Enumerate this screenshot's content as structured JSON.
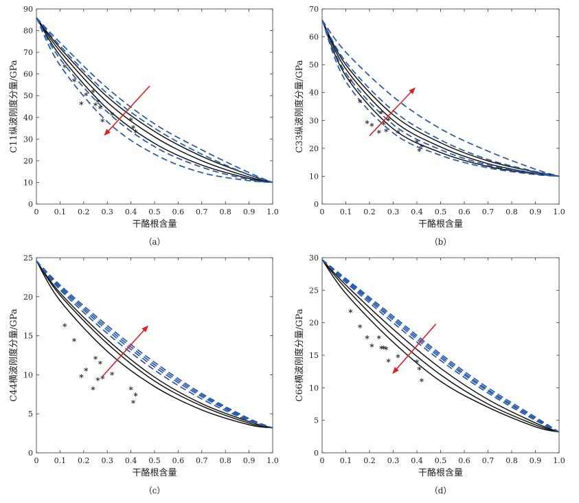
{
  "figure": {
    "xlabel": "干酪根含量",
    "colors": {
      "model": "#111111",
      "bound": "#2a5caa",
      "arrow": "#e02020",
      "points": "#111111"
    }
  },
  "chart_data": [
    {
      "type": "line",
      "panel_label": "（a）",
      "ylabel": "C11纵波刚度分量/GPa",
      "xlabel": "干酪根含量",
      "xlim": [
        0,
        1.0
      ],
      "ylim": [
        0,
        90
      ],
      "xticks": [
        "0",
        "0.1",
        "0.2",
        "0.3",
        "0.4",
        "0.5",
        "0.6",
        "0.7",
        "0.8",
        "0.9",
        "1.0"
      ],
      "yticks": [
        "0",
        "10",
        "20",
        "30",
        "40",
        "50",
        "60",
        "70",
        "80",
        "90"
      ],
      "start_value": 86,
      "end_value": 10,
      "series": [
        {
          "name": "model-1",
          "style": "solid",
          "values_at": {
            "0.1": 72.0,
            "0.3": 49.5,
            "0.5": 33.5,
            "0.7": 22.0,
            "0.9": 13.5
          }
        },
        {
          "name": "model-2",
          "style": "solid",
          "values_at": {
            "0.1": 70.5,
            "0.3": 47.0,
            "0.5": 31.0,
            "0.7": 20.0,
            "0.9": 12.5
          }
        },
        {
          "name": "model-3",
          "style": "solid",
          "values_at": {
            "0.1": 68.5,
            "0.3": 44.0,
            "0.5": 28.0,
            "0.7": 18.0,
            "0.9": 11.8
          }
        },
        {
          "name": "bound-1",
          "style": "dashed",
          "values_at": {
            "0.1": 74.5,
            "0.3": 53.5,
            "0.5": 37.0,
            "0.7": 25.0,
            "0.9": 14.5
          }
        },
        {
          "name": "bound-2",
          "style": "dashed",
          "values_at": {
            "0.1": 73.0,
            "0.3": 51.0,
            "0.5": 35.0,
            "0.7": 23.0,
            "0.9": 13.5
          }
        },
        {
          "name": "bound-3",
          "style": "dashed",
          "values_at": {
            "0.1": 67.0,
            "0.3": 42.5,
            "0.5": 26.5,
            "0.7": 17.0,
            "0.9": 11.3
          }
        },
        {
          "name": "bound-4",
          "style": "dashed",
          "values_at": {
            "0.1": 64.0,
            "0.3": 38.0,
            "0.5": 23.0,
            "0.7": 14.5,
            "0.9": 10.8
          }
        }
      ],
      "points": {
        "x": [
          0.12,
          0.16,
          0.19,
          0.21,
          0.24,
          0.25,
          0.26,
          0.27,
          0.28,
          0.32,
          0.4,
          0.41,
          0.42
        ],
        "y": [
          63,
          56.5,
          46,
          50,
          51.5,
          45.5,
          47,
          44,
          38,
          41,
          38.5,
          35,
          33
        ]
      },
      "arrow": {
        "from": [
          0.48,
          54.5
        ],
        "to": [
          0.29,
          32.0
        ]
      }
    },
    {
      "type": "line",
      "panel_label": "（b）",
      "ylabel": "C33纵波刚度分量/GPa",
      "xlabel": "干酪根含量",
      "xlim": [
        0,
        1.0
      ],
      "ylim": [
        0,
        70
      ],
      "xticks": [
        "0",
        "0.1",
        "0.2",
        "0.3",
        "0.4",
        "0.5",
        "0.6",
        "0.7",
        "0.8",
        "0.9",
        "1.0"
      ],
      "yticks": [
        "0",
        "10",
        "20",
        "30",
        "40",
        "50",
        "60",
        "70"
      ],
      "start_value": 66,
      "end_value": 10,
      "series": [
        {
          "name": "model-1",
          "style": "solid",
          "values_at": {
            "0.1": 50.0,
            "0.3": 32.0,
            "0.5": 22.0,
            "0.7": 15.5,
            "0.9": 11.5
          }
        },
        {
          "name": "model-2",
          "style": "solid",
          "values_at": {
            "0.1": 48.5,
            "0.3": 30.0,
            "0.5": 20.5,
            "0.7": 14.5,
            "0.9": 11.0
          }
        },
        {
          "name": "model-3",
          "style": "solid",
          "values_at": {
            "0.1": 46.0,
            "0.3": 27.0,
            "0.5": 18.5,
            "0.7": 13.5,
            "0.9": 10.8
          }
        },
        {
          "name": "bound-1",
          "style": "dashed",
          "values_at": {
            "0.1": 54.5,
            "0.3": 38.5,
            "0.5": 27.0,
            "0.7": 19.0,
            "0.9": 12.5
          }
        },
        {
          "name": "bound-2",
          "style": "dashed",
          "values_at": {
            "0.1": 51.0,
            "0.3": 33.5,
            "0.5": 23.0,
            "0.7": 16.0,
            "0.9": 11.7
          }
        },
        {
          "name": "bound-3",
          "style": "dashed",
          "values_at": {
            "0.1": 47.0,
            "0.3": 28.5,
            "0.5": 19.5,
            "0.7": 14.0,
            "0.9": 11.0
          }
        },
        {
          "name": "bound-4",
          "style": "dashed",
          "values_at": {
            "0.1": 44.0,
            "0.3": 25.5,
            "0.5": 17.5,
            "0.7": 13.0,
            "0.9": 10.6
          }
        }
      ],
      "points": {
        "x": [
          0.12,
          0.16,
          0.19,
          0.21,
          0.24,
          0.25,
          0.26,
          0.27,
          0.28,
          0.32,
          0.4,
          0.41,
          0.42
        ],
        "y": [
          44,
          36.5,
          29,
          28,
          25.5,
          32.5,
          28.5,
          26,
          30,
          25.5,
          22,
          19,
          20.5
        ]
      },
      "arrow": {
        "from": [
          0.2,
          24.5
        ],
        "to": [
          0.39,
          41.5
        ]
      }
    },
    {
      "type": "line",
      "panel_label": "（c）",
      "ylabel": "C44横波刚度分量/GPa",
      "xlabel": "干酪根含量",
      "xlim": [
        0,
        1.0
      ],
      "ylim": [
        0,
        25
      ],
      "xticks": [
        "0",
        "0.1",
        "0.2",
        "0.3",
        "0.4",
        "0.5",
        "0.6",
        "0.7",
        "0.8",
        "0.9",
        "1.0"
      ],
      "yticks": [
        "0",
        "5",
        "10",
        "15",
        "20",
        "25"
      ],
      "start_value": 24.6,
      "end_value": 3.2,
      "series": [
        {
          "name": "model-1",
          "style": "solid",
          "values_at": {
            "0.1": 20.5,
            "0.3": 14.5,
            "0.5": 9.7,
            "0.7": 6.3,
            "0.9": 4.0
          }
        },
        {
          "name": "model-2",
          "style": "solid",
          "values_at": {
            "0.1": 20.2,
            "0.3": 14.0,
            "0.5": 9.2,
            "0.7": 6.0,
            "0.9": 3.8
          }
        },
        {
          "name": "model-3",
          "style": "solid",
          "values_at": {
            "0.1": 19.5,
            "0.3": 13.0,
            "0.5": 8.5,
            "0.7": 5.5,
            "0.9": 3.6
          }
        },
        {
          "name": "bound-1",
          "style": "dashed",
          "values_at": {
            "0.1": 21.5,
            "0.3": 16.3,
            "0.5": 11.6,
            "0.7": 7.6,
            "0.9": 4.4
          }
        },
        {
          "name": "bound-2",
          "style": "dashed",
          "values_at": {
            "0.1": 21.3,
            "0.3": 16.0,
            "0.5": 11.3,
            "0.7": 7.4,
            "0.9": 4.3
          }
        },
        {
          "name": "bound-3",
          "style": "dashed",
          "values_at": {
            "0.1": 21.1,
            "0.3": 15.7,
            "0.5": 11.0,
            "0.7": 7.2,
            "0.9": 4.2
          }
        },
        {
          "name": "bound-4",
          "style": "dashed",
          "values_at": {
            "0.1": 20.9,
            "0.3": 15.3,
            "0.5": 10.6,
            "0.7": 6.9,
            "0.9": 4.1
          }
        }
      ],
      "points": {
        "x": [
          0.12,
          0.16,
          0.19,
          0.21,
          0.24,
          0.25,
          0.26,
          0.27,
          0.28,
          0.32,
          0.4,
          0.41,
          0.42
        ],
        "y": [
          16.2,
          14.3,
          9.7,
          10.5,
          8.1,
          12.0,
          9.3,
          11.4,
          9.5,
          10.0,
          8.1,
          6.4,
          7.3
        ]
      },
      "arrow": {
        "from": [
          0.28,
          9.8
        ],
        "to": [
          0.47,
          16.2
        ]
      }
    },
    {
      "type": "line",
      "panel_label": "（d）",
      "ylabel": "C66横波刚度分量/GPa",
      "xlabel": "干酪根含量",
      "xlim": [
        0,
        1.0
      ],
      "ylim": [
        0,
        30
      ],
      "xticks": [
        "0",
        "0.1",
        "0.2",
        "0.3",
        "0.4",
        "0.5",
        "0.6",
        "0.7",
        "0.8",
        "0.9",
        "1.0"
      ],
      "yticks": [
        "0",
        "5",
        "10",
        "15",
        "20",
        "25",
        "30"
      ],
      "start_value": 29.7,
      "end_value": 3.2,
      "series": [
        {
          "name": "model-1",
          "style": "solid",
          "values_at": {
            "0.1": 25.8,
            "0.3": 19.0,
            "0.5": 13.0,
            "0.7": 8.2,
            "0.9": 4.6
          }
        },
        {
          "name": "model-2",
          "style": "solid",
          "values_at": {
            "0.1": 25.3,
            "0.3": 18.0,
            "0.5": 12.0,
            "0.7": 7.5,
            "0.9": 4.3
          }
        },
        {
          "name": "model-3",
          "style": "solid",
          "values_at": {
            "0.1": 24.5,
            "0.3": 17.0,
            "0.5": 11.0,
            "0.7": 7.0,
            "0.9": 4.0
          }
        },
        {
          "name": "bound-1",
          "style": "dashed",
          "values_at": {
            "0.1": 26.8,
            "0.3": 21.0,
            "0.5": 15.2,
            "0.7": 10.0,
            "0.9": 5.5
          }
        },
        {
          "name": "bound-2",
          "style": "dashed",
          "values_at": {
            "0.1": 26.6,
            "0.3": 20.7,
            "0.5": 14.9,
            "0.7": 9.7,
            "0.9": 5.3
          }
        },
        {
          "name": "bound-3",
          "style": "dashed",
          "values_at": {
            "0.1": 26.4,
            "0.3": 20.4,
            "0.5": 14.6,
            "0.7": 9.5,
            "0.9": 5.2
          }
        },
        {
          "name": "bound-4",
          "style": "dashed",
          "values_at": {
            "0.1": 26.2,
            "0.3": 20.0,
            "0.5": 14.2,
            "0.7": 9.2,
            "0.9": 5.0
          }
        }
      ],
      "points": {
        "x": [
          0.12,
          0.16,
          0.19,
          0.21,
          0.24,
          0.25,
          0.26,
          0.27,
          0.28,
          0.32,
          0.4,
          0.41,
          0.42
        ],
        "y": [
          21.6,
          19.3,
          17.6,
          16.3,
          17.6,
          16.0,
          16.0,
          15.9,
          14.0,
          14.7,
          13.9,
          12.8,
          11.0
        ]
      },
      "arrow": {
        "from": [
          0.48,
          19.8
        ],
        "to": [
          0.3,
          12.3
        ]
      }
    }
  ]
}
